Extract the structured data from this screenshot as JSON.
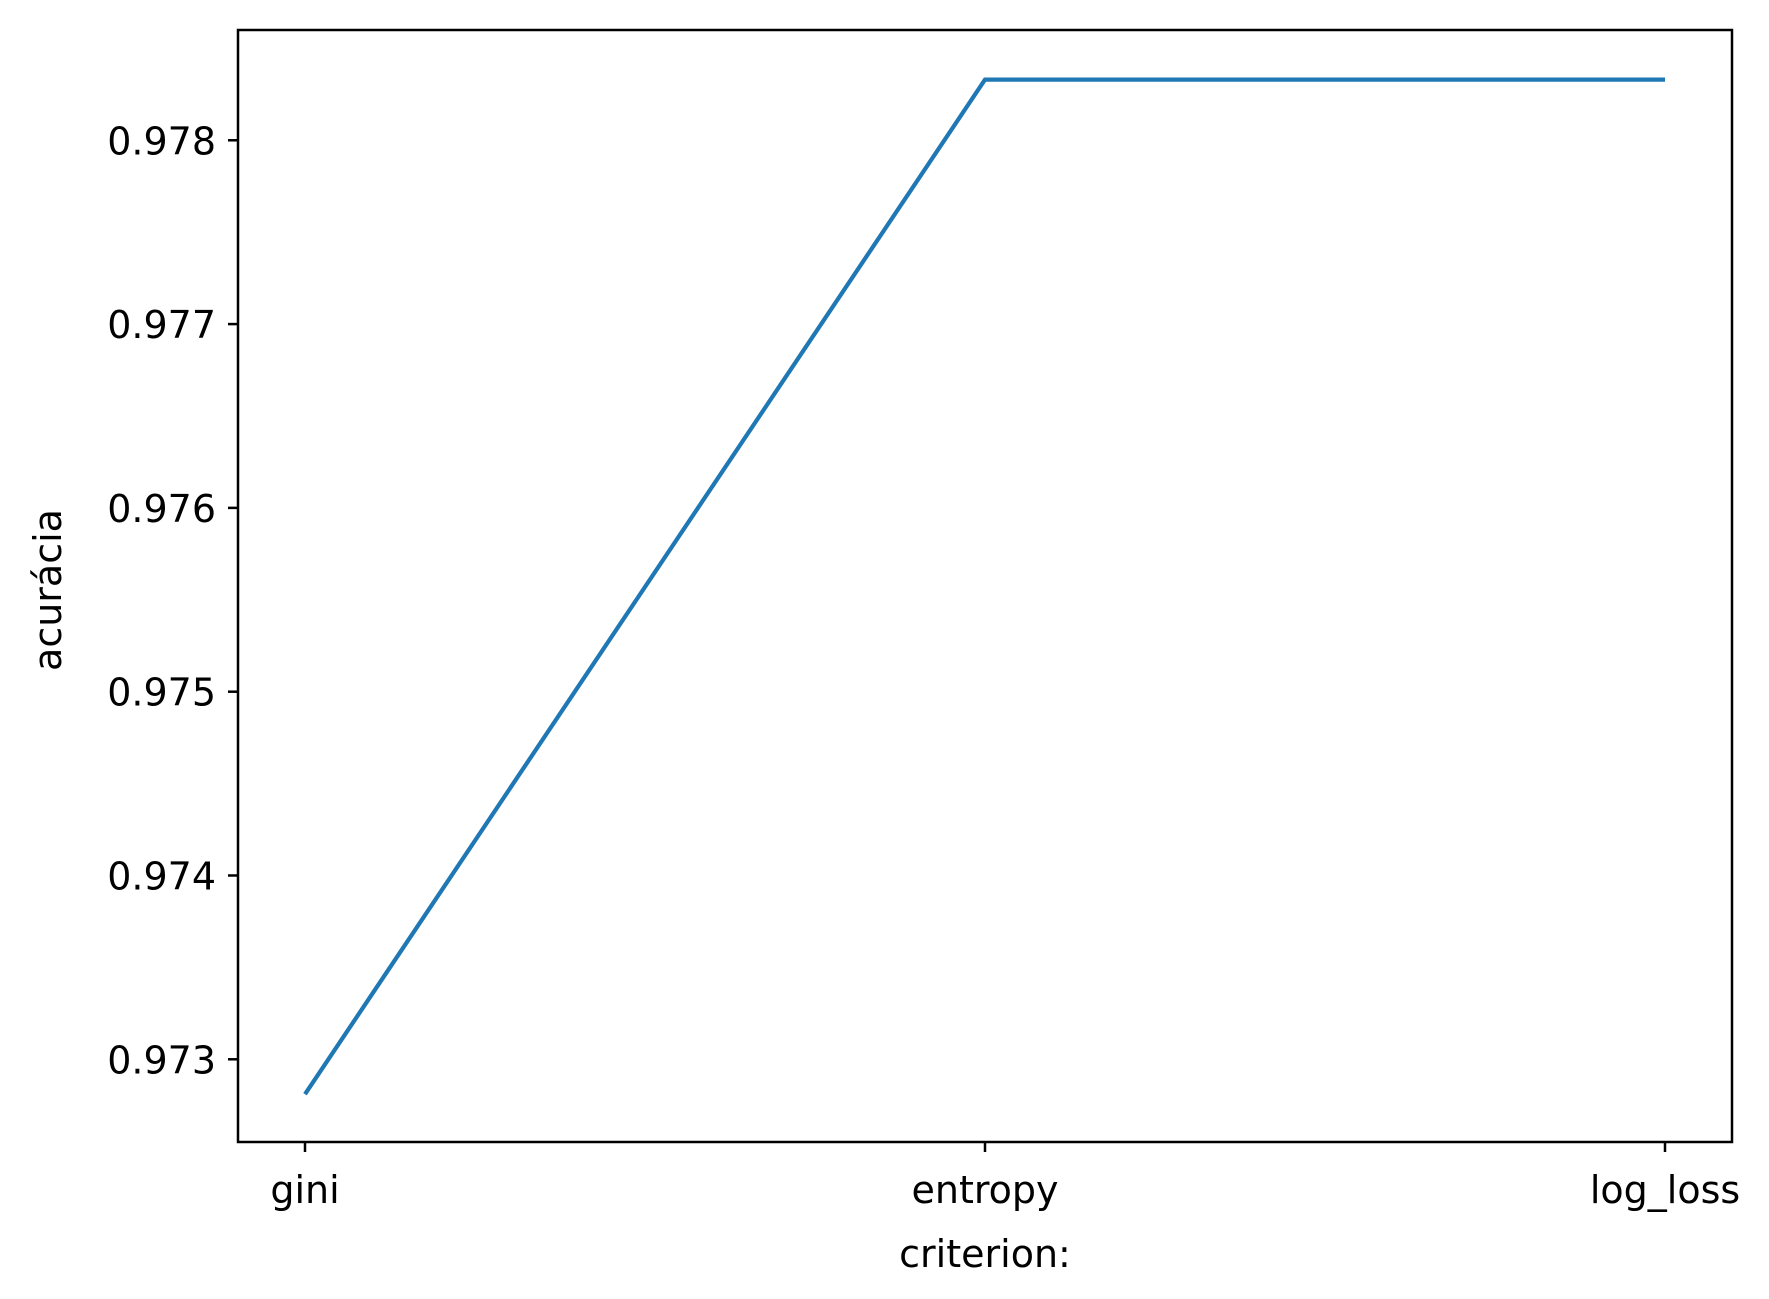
{
  "chart_data": {
    "type": "line",
    "categories": [
      "gini",
      "entropy",
      "log_loss"
    ],
    "series": [
      {
        "values": [
          0.97281,
          0.97833,
          0.97833
        ]
      }
    ],
    "xlabel": "criterion:",
    "ylabel": "acurácia",
    "ylim": [
      0.97255,
      0.9786
    ],
    "yticks": [
      0.973,
      0.974,
      0.975,
      0.976,
      0.977,
      0.978
    ],
    "ytick_labels": [
      "0.973",
      "0.974",
      "0.975",
      "0.976",
      "0.977",
      "0.978"
    ],
    "grid": false,
    "legend": "none",
    "colors": {
      "line": "#1f77b4",
      "axes": "#000000",
      "background": "#ffffff"
    }
  }
}
